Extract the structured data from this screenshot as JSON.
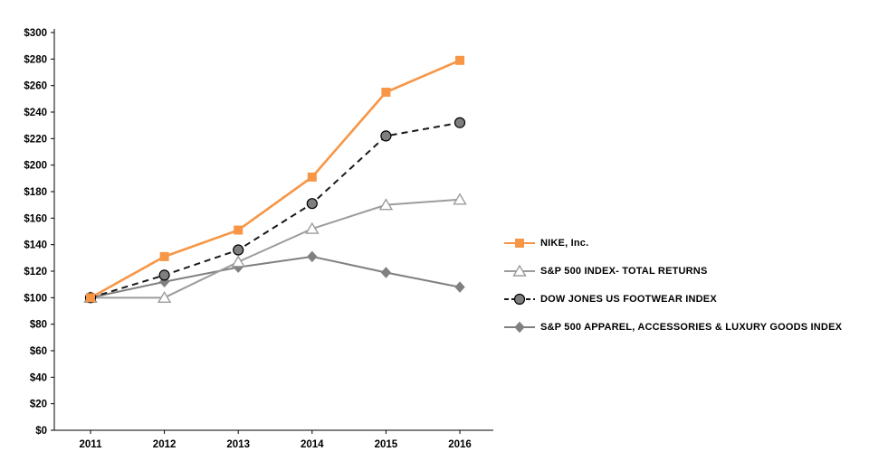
{
  "chart_data": {
    "type": "line",
    "title": "",
    "xlabel": "",
    "ylabel": "",
    "x": [
      "2011",
      "2012",
      "2013",
      "2014",
      "2015",
      "2016"
    ],
    "series": [
      {
        "name": "NIKE, Inc.",
        "values": [
          100,
          131,
          151,
          191,
          255,
          279
        ],
        "color": "#F79646",
        "marker": "square",
        "dash": "solid"
      },
      {
        "name": "S&P 500 INDEX- TOTAL RETURNS",
        "values": [
          100,
          100,
          127,
          152,
          170,
          174
        ],
        "color": "#9C9C9C",
        "marker": "triangle-open",
        "dash": "solid"
      },
      {
        "name": "DOW JONES US FOOTWEAR INDEX",
        "values": [
          100,
          117,
          136,
          171,
          222,
          232
        ],
        "color": "#1A1A1A",
        "marker": "circle",
        "marker_fill": "#7F7F7F",
        "dash": "dashed"
      },
      {
        "name": "S&P 500 APPAREL, ACCESSORIES & LUXURY GOODS INDEX",
        "values": [
          100,
          112,
          123,
          131,
          119,
          108
        ],
        "color": "#808080",
        "marker": "diamond",
        "dash": "solid"
      }
    ],
    "ylim": [
      0,
      300
    ],
    "ytick_step": 20,
    "ytick_prefix": "$",
    "grid": false,
    "legend_position": "right"
  }
}
